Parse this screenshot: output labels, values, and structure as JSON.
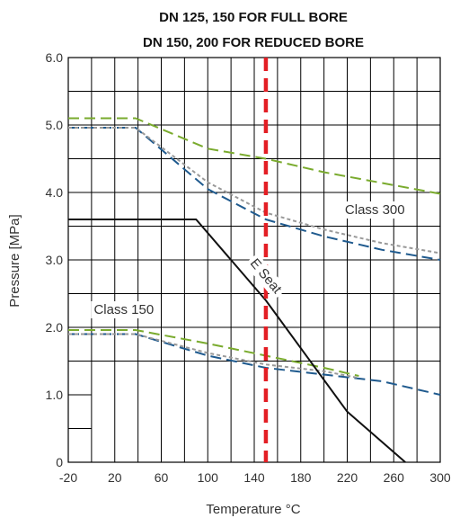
{
  "chart_data": {
    "type": "line",
    "title": "DN 125, 150 FOR FULL BORE",
    "subtitle": "DN 150, 200 FOR REDUCED BORE",
    "xlabel": "Temperature °C",
    "ylabel": "Pressure [MPa]",
    "xlim": [
      -20,
      300
    ],
    "ylim": [
      0,
      6.0
    ],
    "grid": true,
    "x_ticks": [
      "-20",
      "20",
      "60",
      "100",
      "140",
      "180",
      "220",
      "260",
      "300"
    ],
    "y_ticks": [
      "0",
      "1.0",
      "2.0",
      "3.0",
      "4.0",
      "5.0",
      "6.0"
    ],
    "series": [
      {
        "color": "#7aab2e",
        "dash": "long-dash",
        "x": [
          -20,
          38,
          100,
          150,
          200,
          300
        ],
        "y": [
          5.1,
          5.1,
          4.65,
          4.5,
          4.3,
          3.98
        ]
      },
      {
        "color": "#1f5a8e",
        "dash": "long-dash",
        "x": [
          -20,
          38,
          100,
          150,
          200,
          250,
          300
        ],
        "y": [
          4.96,
          4.96,
          4.05,
          3.6,
          3.35,
          3.15,
          3.0
        ]
      },
      {
        "color": "#999999",
        "dash": "short-dash",
        "x": [
          -20,
          38,
          100,
          150,
          200,
          250,
          300
        ],
        "y": [
          4.96,
          4.96,
          4.15,
          3.7,
          3.45,
          3.25,
          3.1
        ]
      },
      {
        "color": "#7aab2e",
        "dash": "long-dash",
        "x": [
          -20,
          38,
          100,
          150,
          200,
          230
        ],
        "y": [
          1.96,
          1.96,
          1.76,
          1.58,
          1.4,
          1.28
        ]
      },
      {
        "color": "#1f5a8e",
        "dash": "long-dash",
        "x": [
          -20,
          38,
          100,
          150,
          200,
          250,
          300
        ],
        "y": [
          1.9,
          1.9,
          1.58,
          1.4,
          1.3,
          1.2,
          1.0
        ]
      },
      {
        "color": "#999999",
        "dash": "short-dash",
        "x": [
          -20,
          38,
          100,
          150,
          200,
          230
        ],
        "y": [
          1.9,
          1.9,
          1.62,
          1.45,
          1.35,
          1.25
        ]
      },
      {
        "color": "#111111",
        "dash": "solid",
        "x": [
          -20,
          90,
          150,
          220,
          270
        ],
        "y": [
          3.6,
          3.6,
          2.4,
          0.75,
          0.0
        ]
      }
    ],
    "reference_line": {
      "x": 150,
      "color": "#e31e24",
      "dash": "long-dash"
    },
    "annotations": [
      {
        "text": "Class 300",
        "x": 218,
        "y": 3.68
      },
      {
        "text": "Class 150",
        "x": 2,
        "y": 2.2
      },
      {
        "text": "E Seat",
        "x": 136,
        "y": 2.95,
        "rotate": 50
      }
    ]
  }
}
